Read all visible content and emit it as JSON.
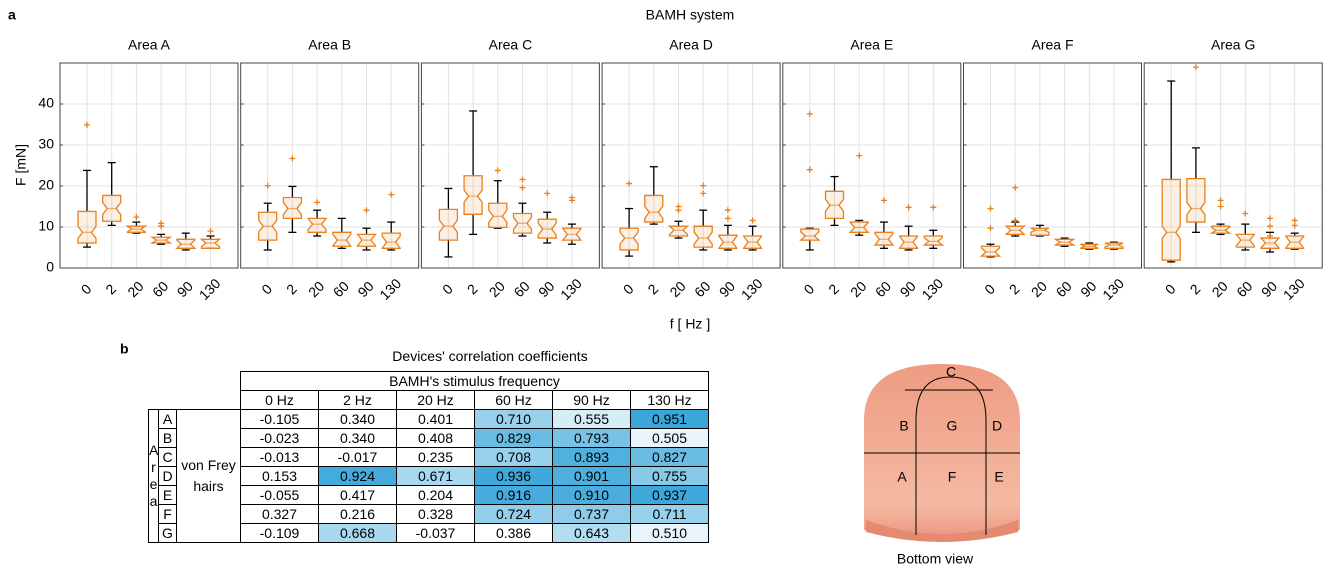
{
  "figure_a": {
    "label": "a",
    "title": "BAMH system",
    "ylabel": "F [mN]",
    "xlabel": "f [ Hz ]"
  },
  "chart_data": [
    {
      "type": "box",
      "title": "Area A",
      "categories": [
        "0",
        "2",
        "20",
        "60",
        "90",
        "130"
      ],
      "color": "#e8801e",
      "whisker_color": "#000000",
      "ylim": [
        0,
        50
      ],
      "yticks": [
        0,
        10,
        20,
        30,
        40
      ],
      "grid": true,
      "min": [
        5.1,
        10.4,
        8.5,
        5.8,
        4.4,
        4.8
      ],
      "q1": [
        6.1,
        11.4,
        8.7,
        6.1,
        4.8,
        4.8
      ],
      "median": [
        8.7,
        14.5,
        9.5,
        6.8,
        5.8,
        6.1
      ],
      "q3": [
        13.8,
        17.7,
        10.2,
        7.5,
        7.0,
        7.0
      ],
      "max": [
        23.8,
        25.7,
        11.2,
        8.2,
        8.5,
        7.8
      ],
      "outliers": [
        [
          34.9
        ],
        [],
        [
          12.4
        ],
        [
          10.9,
          10.2
        ],
        [],
        [
          9.0
        ]
      ]
    },
    {
      "type": "box",
      "title": "Area B",
      "categories": [
        "0",
        "2",
        "20",
        "60",
        "90",
        "130"
      ],
      "color": "#e8801e",
      "whisker_color": "#000000",
      "ylim": [
        0,
        50
      ],
      "yticks": [
        0,
        10,
        20,
        30,
        40
      ],
      "grid": true,
      "min": [
        4.4,
        8.7,
        7.8,
        4.8,
        4.4,
        4.4
      ],
      "q1": [
        6.8,
        12.1,
        8.7,
        5.3,
        5.3,
        4.8
      ],
      "median": [
        10.2,
        14.5,
        10.7,
        6.8,
        6.8,
        6.3
      ],
      "q3": [
        13.6,
        17.2,
        12.1,
        8.7,
        8.2,
        8.5
      ],
      "max": [
        15.8,
        19.9,
        14.1,
        12.1,
        9.7,
        11.2
      ],
      "outliers": [
        [
          20.1
        ],
        [
          26.7
        ],
        [
          16.0
        ],
        [],
        [
          14.1
        ],
        [
          17.9
        ]
      ]
    },
    {
      "type": "box",
      "title": "Area C",
      "categories": [
        "0",
        "2",
        "20",
        "60",
        "90",
        "130"
      ],
      "color": "#e8801e",
      "whisker_color": "#000000",
      "ylim": [
        0,
        50
      ],
      "yticks": [
        0,
        10,
        20,
        30,
        40
      ],
      "grid": true,
      "min": [
        2.7,
        8.2,
        9.7,
        7.8,
        6.1,
        5.8
      ],
      "q1": [
        6.8,
        13.1,
        9.9,
        8.5,
        7.3,
        6.8
      ],
      "median": [
        10.2,
        17.5,
        12.6,
        10.9,
        9.5,
        8.2
      ],
      "q3": [
        14.3,
        22.5,
        15.8,
        13.3,
        11.9,
        9.7
      ],
      "max": [
        19.4,
        38.3,
        21.3,
        15.8,
        13.6,
        10.7
      ],
      "outliers": [
        [],
        [],
        [
          23.8
        ],
        [
          21.6,
          19.6
        ],
        [
          18.2
        ],
        [
          17.2,
          16.5
        ]
      ]
    },
    {
      "type": "box",
      "title": "Area D",
      "categories": [
        "0",
        "2",
        "20",
        "60",
        "90",
        "130"
      ],
      "color": "#e8801e",
      "whisker_color": "#000000",
      "ylim": [
        0,
        50
      ],
      "yticks": [
        0,
        10,
        20,
        30,
        40
      ],
      "grid": true,
      "min": [
        2.9,
        10.7,
        7.3,
        4.4,
        4.4,
        4.4
      ],
      "q1": [
        4.4,
        11.2,
        7.8,
        5.1,
        4.8,
        4.8
      ],
      "median": [
        7.3,
        13.6,
        9.2,
        7.3,
        6.3,
        6.3
      ],
      "q3": [
        9.7,
        17.7,
        10.2,
        10.2,
        8.0,
        7.8
      ],
      "max": [
        14.5,
        24.7,
        11.4,
        14.1,
        10.4,
        10.2
      ],
      "outliers": [
        [
          20.6
        ],
        [],
        [
          15.0,
          14.1
        ],
        [
          20.1,
          18.2
        ],
        [
          14.1,
          12.1
        ],
        [
          11.6
        ]
      ]
    },
    {
      "type": "box",
      "title": "Area E",
      "categories": [
        "0",
        "2",
        "20",
        "60",
        "90",
        "130"
      ],
      "color": "#e8801e",
      "whisker_color": "#000000",
      "ylim": [
        0,
        50
      ],
      "yticks": [
        0,
        10,
        20,
        30,
        40
      ],
      "grid": true,
      "min": [
        4.4,
        10.4,
        8.0,
        4.8,
        4.4,
        4.8
      ],
      "q1": [
        6.8,
        12.1,
        8.7,
        5.6,
        4.8,
        5.6
      ],
      "median": [
        7.8,
        15.3,
        9.9,
        7.0,
        6.3,
        6.5
      ],
      "q3": [
        9.5,
        18.7,
        11.2,
        8.7,
        7.8,
        7.8
      ],
      "max": [
        9.7,
        22.3,
        11.6,
        11.2,
        10.2,
        9.2
      ],
      "outliers": [
        [
          37.6,
          24.0,
          24.0
        ],
        [],
        [
          27.4
        ],
        [
          16.5
        ],
        [
          14.8
        ],
        [
          14.8
        ]
      ]
    },
    {
      "type": "box",
      "title": "Area F",
      "categories": [
        "0",
        "2",
        "20",
        "60",
        "90",
        "130"
      ],
      "color": "#e8801e",
      "whisker_color": "#000000",
      "ylim": [
        0,
        50
      ],
      "yticks": [
        0,
        10,
        20,
        30,
        40
      ],
      "grid": true,
      "min": [
        2.7,
        7.8,
        7.8,
        5.3,
        4.6,
        4.6
      ],
      "q1": [
        2.9,
        8.2,
        8.0,
        5.6,
        4.8,
        4.8
      ],
      "median": [
        3.9,
        9.2,
        9.2,
        6.3,
        5.3,
        5.6
      ],
      "q3": [
        5.3,
        10.2,
        9.7,
        7.0,
        5.8,
        6.1
      ],
      "max": [
        5.8,
        11.2,
        10.4,
        7.3,
        6.1,
        6.3
      ],
      "outliers": [
        [
          14.5,
          9.7
        ],
        [
          19.6,
          11.6
        ],
        [],
        [],
        [],
        []
      ]
    },
    {
      "type": "box",
      "title": "Area G",
      "categories": [
        "0",
        "2",
        "20",
        "60",
        "90",
        "130"
      ],
      "color": "#e8801e",
      "whisker_color": "#000000",
      "ylim": [
        0,
        50
      ],
      "yticks": [
        0,
        10,
        20,
        30,
        40
      ],
      "grid": true,
      "min": [
        1.5,
        8.7,
        8.2,
        4.4,
        3.9,
        4.6
      ],
      "q1": [
        1.9,
        11.2,
        8.5,
        5.1,
        4.8,
        4.8
      ],
      "median": [
        8.7,
        14.5,
        9.2,
        6.8,
        6.1,
        6.3
      ],
      "q3": [
        21.6,
        21.8,
        10.2,
        8.2,
        7.3,
        7.8
      ],
      "max": [
        45.6,
        29.3,
        10.7,
        10.7,
        8.7,
        8.5
      ],
      "outliers": [
        [],
        [
          49.0
        ],
        [
          16.5,
          15.0
        ],
        [
          13.3
        ],
        [
          12.1,
          10.2,
          7.8
        ],
        [
          11.6,
          10.4
        ]
      ]
    }
  ],
  "figure_b": {
    "label": "b",
    "title": "Devices' correlation coefficients",
    "group_header": "BAMH's stimulus frequency",
    "columns": [
      "0 Hz",
      "2 Hz",
      "20 Hz",
      "60  Hz",
      "90 Hz",
      "130 Hz"
    ],
    "row_group": "Area",
    "row_labels": [
      "A",
      "B",
      "C",
      "D",
      "E",
      "F",
      "G"
    ],
    "device": "von Frey hairs",
    "rows": [
      [
        "-0.105",
        "0.340",
        "0.401",
        "0.710",
        "0.555",
        "0.951"
      ],
      [
        "-0.023",
        "0.340",
        "0.408",
        "0.829",
        "0.793",
        "0.505"
      ],
      [
        "-0.013",
        "-0.017",
        "0.235",
        "0.708",
        "0.893",
        "0.827"
      ],
      [
        "0.153",
        "0.924",
        "0.671",
        "0.936",
        "0.901",
        "0.755"
      ],
      [
        "-0.055",
        "0.417",
        "0.204",
        "0.916",
        "0.910",
        "0.937"
      ],
      [
        "0.327",
        "0.216",
        "0.328",
        "0.724",
        "0.737",
        "0.711"
      ],
      [
        "-0.109",
        "0.668",
        "-0.037",
        "0.386",
        "0.643",
        "0.510"
      ]
    ]
  },
  "diagram": {
    "labels": [
      "C",
      "B",
      "G",
      "D",
      "A",
      "F",
      "E"
    ],
    "caption": "Bottom view"
  }
}
